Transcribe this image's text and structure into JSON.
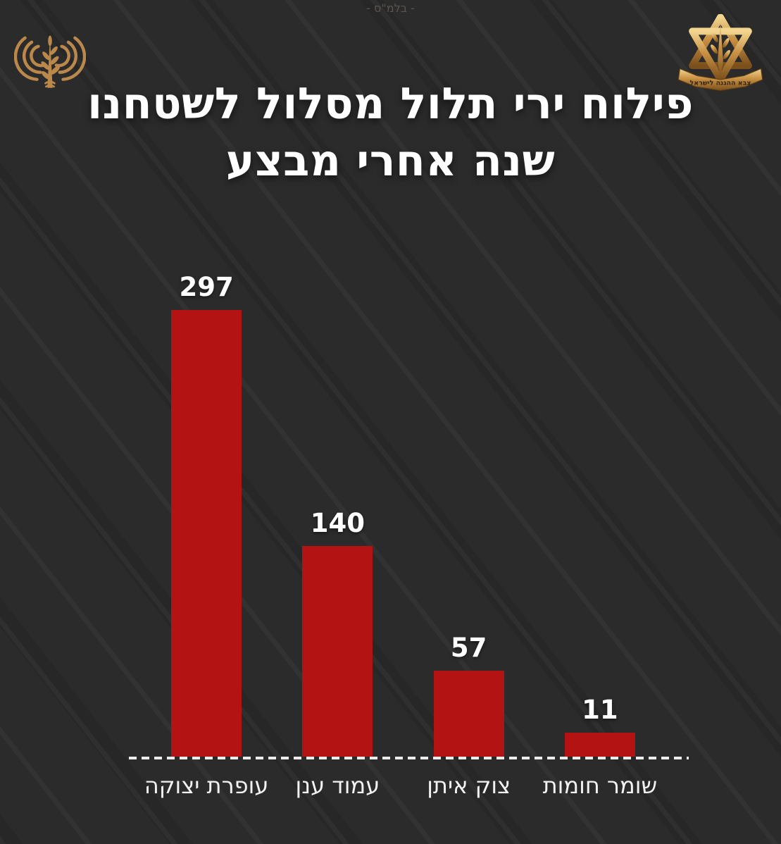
{
  "page": {
    "classification_text": "- בלמ\"ס -",
    "background_color": "#2c2b2b"
  },
  "header": {
    "title_line1": "פילוח ירי תלול מסלול לשטחנו",
    "title_line2": "שנה אחרי מבצע",
    "left_logo": "signal-antenna-wheat-emblem",
    "right_logo": "idf-star-sword-olive-emblem",
    "idf_banner_text": "צבא ההגנה לישראל",
    "logo_color": "#b9884a"
  },
  "chart_data": {
    "type": "bar",
    "title": "פילוח ירי תלול מסלול לשטחנו שנה אחרי מבצע",
    "categories": [
      "עופרת יצוקה",
      "עמוד ענן",
      "צוק איתן",
      "שומר חומות"
    ],
    "values": [
      297,
      140,
      57,
      11
    ],
    "value_labels": [
      "297",
      "140",
      "57",
      "11"
    ],
    "ylim": [
      0,
      300
    ],
    "bar_color": "#b31313",
    "value_label_color": "#ffffff",
    "category_label_color": "#f2f2f2",
    "baseline_style": "dashed-white",
    "grid": false,
    "legend": false,
    "text_direction": "rtl"
  }
}
